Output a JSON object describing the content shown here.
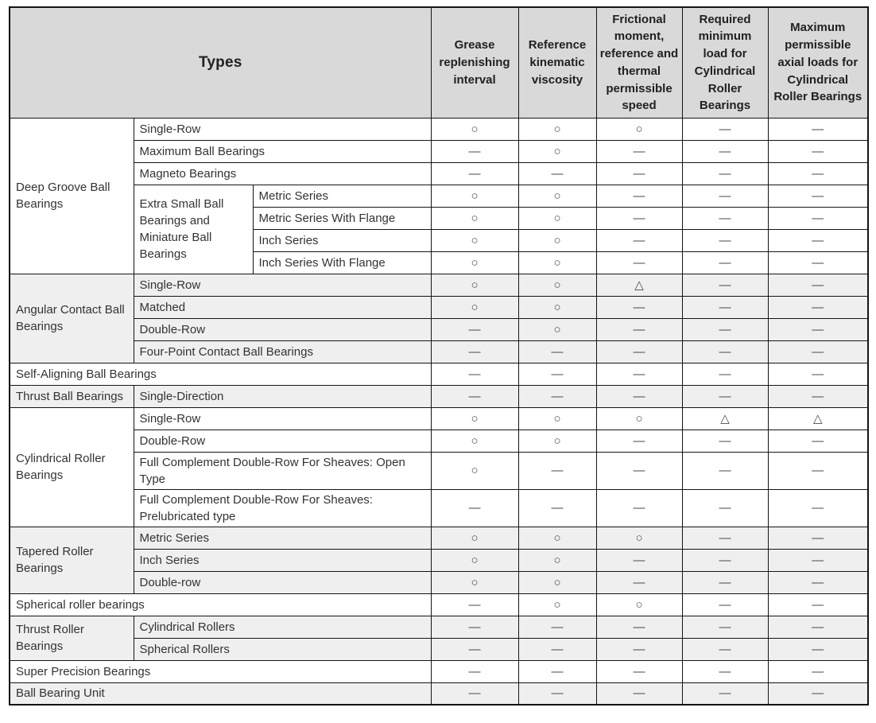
{
  "table": {
    "types_header": "Types",
    "columns": [
      "Grease replenishing interval",
      "Reference kinematic viscosity",
      "Frictional moment, reference and thermal permissible speed",
      "Required minimum load for Cylindrical Roller Bearings",
      "Maximum permissible axial loads for Cylindrical Roller Bearings"
    ],
    "symbols": {
      "applicable": "○",
      "conditional": "△",
      "not_applicable": "—"
    },
    "colors": {
      "header_bg": "#d9d9d9",
      "shaded_group_bg": "#efefef",
      "border": "#141414",
      "text": "#333333"
    },
    "groups": [
      {
        "name": "Deep Groove Ball Bearings",
        "shaded": false,
        "rows": [
          {
            "label": "Single-Row",
            "label_colspan": 2,
            "values": [
              "○",
              "○",
              "○",
              "—",
              "—"
            ]
          },
          {
            "label": "Maximum Ball Bearings",
            "label_colspan": 2,
            "values": [
              "—",
              "○",
              "—",
              "—",
              "—"
            ]
          },
          {
            "label": "Magneto Bearings",
            "label_colspan": 2,
            "values": [
              "—",
              "—",
              "—",
              "—",
              "—"
            ]
          },
          {
            "label": "Extra Small Ball Bearings and Miniature Ball Bearings",
            "label_rowspan": 4,
            "label2": "Metric Series",
            "values": [
              "○",
              "○",
              "—",
              "—",
              "—"
            ]
          },
          {
            "label2": "Metric Series With Flange",
            "values": [
              "○",
              "○",
              "—",
              "—",
              "—"
            ]
          },
          {
            "label2": "Inch Series",
            "values": [
              "○",
              "○",
              "—",
              "—",
              "—"
            ]
          },
          {
            "label2": "Inch Series With Flange",
            "values": [
              "○",
              "○",
              "—",
              "—",
              "—"
            ]
          }
        ]
      },
      {
        "name": "Angular Contact Ball Bearings",
        "shaded": true,
        "rows": [
          {
            "label": "Single-Row",
            "label_colspan": 2,
            "values": [
              "○",
              "○",
              "△",
              "—",
              "—"
            ]
          },
          {
            "label": "Matched",
            "label_colspan": 2,
            "values": [
              "○",
              "○",
              "—",
              "—",
              "—"
            ]
          },
          {
            "label": "Double-Row",
            "label_colspan": 2,
            "values": [
              "—",
              "○",
              "—",
              "—",
              "—"
            ]
          },
          {
            "label": "Four-Point Contact Ball Bearings",
            "label_colspan": 2,
            "values": [
              "—",
              "—",
              "—",
              "—",
              "—"
            ]
          }
        ]
      },
      {
        "name": "Self-Aligning Ball Bearings",
        "shaded": false,
        "full_row": true,
        "values": [
          "—",
          "—",
          "—",
          "—",
          "—"
        ]
      },
      {
        "name": "Thrust Ball Bearings",
        "shaded": true,
        "rows": [
          {
            "label": "Single-Direction",
            "label_colspan": 2,
            "values": [
              "—",
              "—",
              "—",
              "—",
              "—"
            ]
          }
        ]
      },
      {
        "name": "Cylindrical Roller Bearings",
        "shaded": false,
        "rows": [
          {
            "label": "Single-Row",
            "label_colspan": 2,
            "values": [
              "○",
              "○",
              "○",
              "△",
              "△"
            ]
          },
          {
            "label": "Double-Row",
            "label_colspan": 2,
            "values": [
              "○",
              "○",
              "—",
              "—",
              "—"
            ]
          },
          {
            "label": "Full Complement Double-Row For Sheaves: Open Type",
            "label_colspan": 2,
            "values": [
              "○",
              "—",
              "—",
              "—",
              "—"
            ]
          },
          {
            "label": "Full Complement Double-Row For Sheaves: Prelubricated type",
            "label_colspan": 2,
            "values": [
              "—",
              "—",
              "—",
              "—",
              "—"
            ]
          }
        ]
      },
      {
        "name": "Tapered Roller Bearings",
        "shaded": true,
        "rows": [
          {
            "label": "Metric Series",
            "label_colspan": 2,
            "values": [
              "○",
              "○",
              "○",
              "—",
              "—"
            ]
          },
          {
            "label": "Inch Series",
            "label_colspan": 2,
            "values": [
              "○",
              "○",
              "—",
              "—",
              "—"
            ]
          },
          {
            "label": "Double-row",
            "label_colspan": 2,
            "values": [
              "○",
              "○",
              "—",
              "—",
              "—"
            ]
          }
        ]
      },
      {
        "name": "Spherical roller bearings",
        "shaded": false,
        "full_row": true,
        "values": [
          "—",
          "○",
          "○",
          "—",
          "—"
        ]
      },
      {
        "name": "Thrust Roller Bearings",
        "shaded": true,
        "rows": [
          {
            "label": "Cylindrical Rollers",
            "label_colspan": 2,
            "values": [
              "—",
              "—",
              "—",
              "—",
              "—"
            ]
          },
          {
            "label": "Spherical Rollers",
            "label_colspan": 2,
            "values": [
              "—",
              "—",
              "—",
              "—",
              "—"
            ]
          }
        ]
      },
      {
        "name": "Super Precision Bearings",
        "shaded": false,
        "full_row": true,
        "values": [
          "—",
          "—",
          "—",
          "—",
          "—"
        ]
      },
      {
        "name": "Ball Bearing Unit",
        "shaded": true,
        "full_row": true,
        "values": [
          "—",
          "—",
          "—",
          "—",
          "—"
        ]
      }
    ]
  }
}
